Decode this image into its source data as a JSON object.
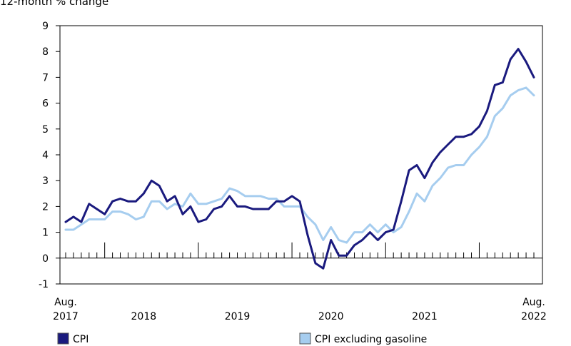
{
  "chart_data": {
    "type": "line",
    "title": "",
    "ylabel": "12-month % change",
    "xlabel": "",
    "ylim": [
      -1,
      9
    ],
    "y_ticks": [
      -1,
      0,
      1,
      2,
      3,
      4,
      5,
      6,
      7,
      8,
      9
    ],
    "x_tick_labels": [
      {
        "month": 0,
        "line1": "Aug.",
        "line2": "2017"
      },
      {
        "month": 10,
        "line1": "",
        "line2": "2018"
      },
      {
        "month": 22,
        "line1": "",
        "line2": "2019"
      },
      {
        "month": 34,
        "line1": "",
        "line2": "2020"
      },
      {
        "month": 46,
        "line1": "",
        "line2": "2021"
      },
      {
        "month": 60,
        "line1": "Aug.",
        "line2": "2022"
      }
    ],
    "x_major_ticks": [
      5,
      17,
      29,
      41,
      53
    ],
    "months": [
      "2017-08",
      "2017-09",
      "2017-10",
      "2017-11",
      "2017-12",
      "2018-01",
      "2018-02",
      "2018-03",
      "2018-04",
      "2018-05",
      "2018-06",
      "2018-07",
      "2018-08",
      "2018-09",
      "2018-10",
      "2018-11",
      "2018-12",
      "2019-01",
      "2019-02",
      "2019-03",
      "2019-04",
      "2019-05",
      "2019-06",
      "2019-07",
      "2019-08",
      "2019-09",
      "2019-10",
      "2019-11",
      "2019-12",
      "2020-01",
      "2020-02",
      "2020-03",
      "2020-04",
      "2020-05",
      "2020-06",
      "2020-07",
      "2020-08",
      "2020-09",
      "2020-10",
      "2020-11",
      "2020-12",
      "2021-01",
      "2021-02",
      "2021-03",
      "2021-04",
      "2021-05",
      "2021-06",
      "2021-07",
      "2021-08",
      "2021-09",
      "2021-10",
      "2021-11",
      "2021-12",
      "2022-01",
      "2022-02",
      "2022-03",
      "2022-04",
      "2022-05",
      "2022-06",
      "2022-07",
      "2022-08"
    ],
    "series": [
      {
        "name": "CPI",
        "color": "#1a1a7e",
        "values": [
          1.4,
          1.6,
          1.4,
          2.1,
          1.9,
          1.7,
          2.2,
          2.3,
          2.2,
          2.2,
          2.5,
          3.0,
          2.8,
          2.2,
          2.4,
          1.7,
          2.0,
          1.4,
          1.5,
          1.9,
          2.0,
          2.4,
          2.0,
          2.0,
          1.9,
          1.9,
          1.9,
          2.2,
          2.2,
          2.4,
          2.2,
          0.9,
          -0.2,
          -0.4,
          0.7,
          0.1,
          0.1,
          0.5,
          0.7,
          1.0,
          0.7,
          1.0,
          1.1,
          2.2,
          3.4,
          3.6,
          3.1,
          3.7,
          4.1,
          4.4,
          4.7,
          4.7,
          4.8,
          5.1,
          5.7,
          6.7,
          6.8,
          7.7,
          8.1,
          7.6,
          7.0
        ]
      },
      {
        "name": "CPI excluding gasoline",
        "color": "#a6cdef",
        "values": [
          1.1,
          1.1,
          1.3,
          1.5,
          1.5,
          1.5,
          1.8,
          1.8,
          1.7,
          1.5,
          1.6,
          2.2,
          2.2,
          1.9,
          2.1,
          2.0,
          2.5,
          2.1,
          2.1,
          2.2,
          2.3,
          2.7,
          2.6,
          2.4,
          2.4,
          2.4,
          2.3,
          2.3,
          2.0,
          2.0,
          2.0,
          1.6,
          1.3,
          0.7,
          1.2,
          0.7,
          0.6,
          1.0,
          1.0,
          1.3,
          1.0,
          1.3,
          1.0,
          1.2,
          1.8,
          2.5,
          2.2,
          2.8,
          3.1,
          3.5,
          3.6,
          3.6,
          4.0,
          4.3,
          4.7,
          5.5,
          5.8,
          6.3,
          6.5,
          6.6,
          6.3
        ]
      }
    ],
    "grid": false,
    "legend_position": "bottom"
  }
}
